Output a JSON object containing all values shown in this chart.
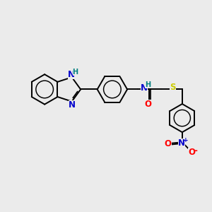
{
  "bg_color": "#ebebeb",
  "bond_color": "#000000",
  "bond_width": 1.4,
  "atom_colors": {
    "N": "#0000cc",
    "O": "#ff0000",
    "S": "#cccc00",
    "H": "#008080",
    "C": "#000000"
  },
  "font_size": 8.5,
  "fig_width": 3.0,
  "fig_height": 3.0,
  "dpi": 100
}
